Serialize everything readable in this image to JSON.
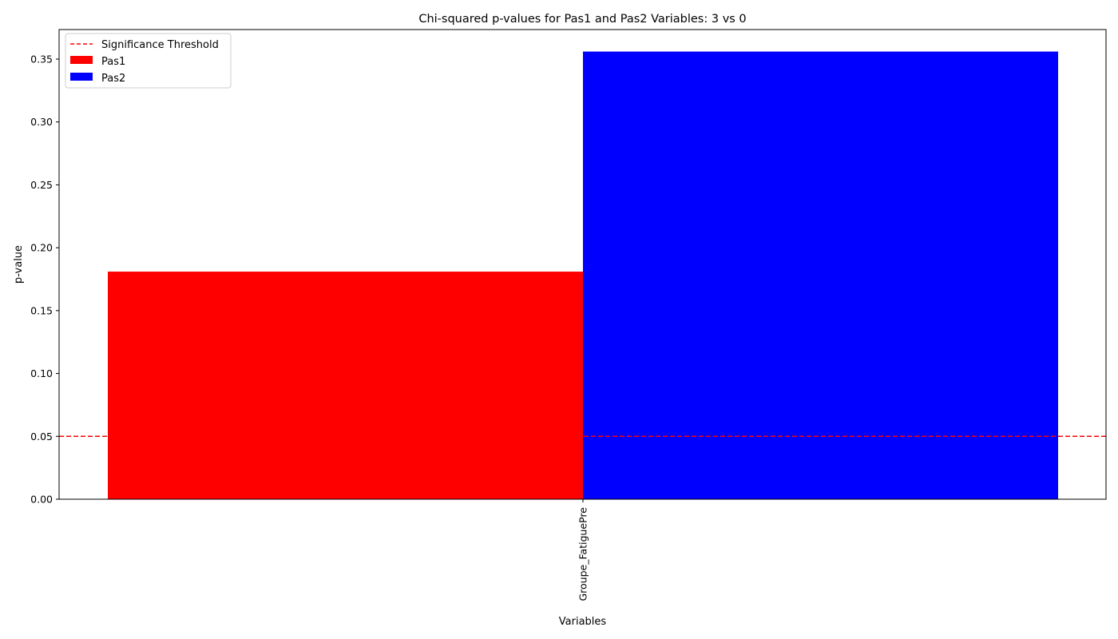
{
  "chart_data": {
    "type": "bar",
    "title": "Chi-squared p-values for Pas1 and Pas2 Variables: 3 vs 0",
    "xlabel": "Variables",
    "ylabel": "p-value",
    "categories": [
      "Groupe_FatiguePre"
    ],
    "series": [
      {
        "name": "Pas1",
        "values": [
          0.181
        ],
        "color": "#ff0000"
      },
      {
        "name": "Pas2",
        "values": [
          0.356
        ],
        "color": "#0000ff"
      }
    ],
    "ylim": [
      0,
      0.3735
    ],
    "yticks": [
      0.0,
      0.05,
      0.1,
      0.15,
      0.2,
      0.25,
      0.3,
      0.35
    ],
    "ytick_labels": [
      "0.00",
      "0.05",
      "0.10",
      "0.15",
      "0.20",
      "0.25",
      "0.30",
      "0.35"
    ],
    "threshold": {
      "name": "Significance Threshold",
      "value": 0.05,
      "color": "#ff0000",
      "style": "dashed"
    },
    "legend": {
      "placement": "top-left"
    },
    "grid": false
  }
}
